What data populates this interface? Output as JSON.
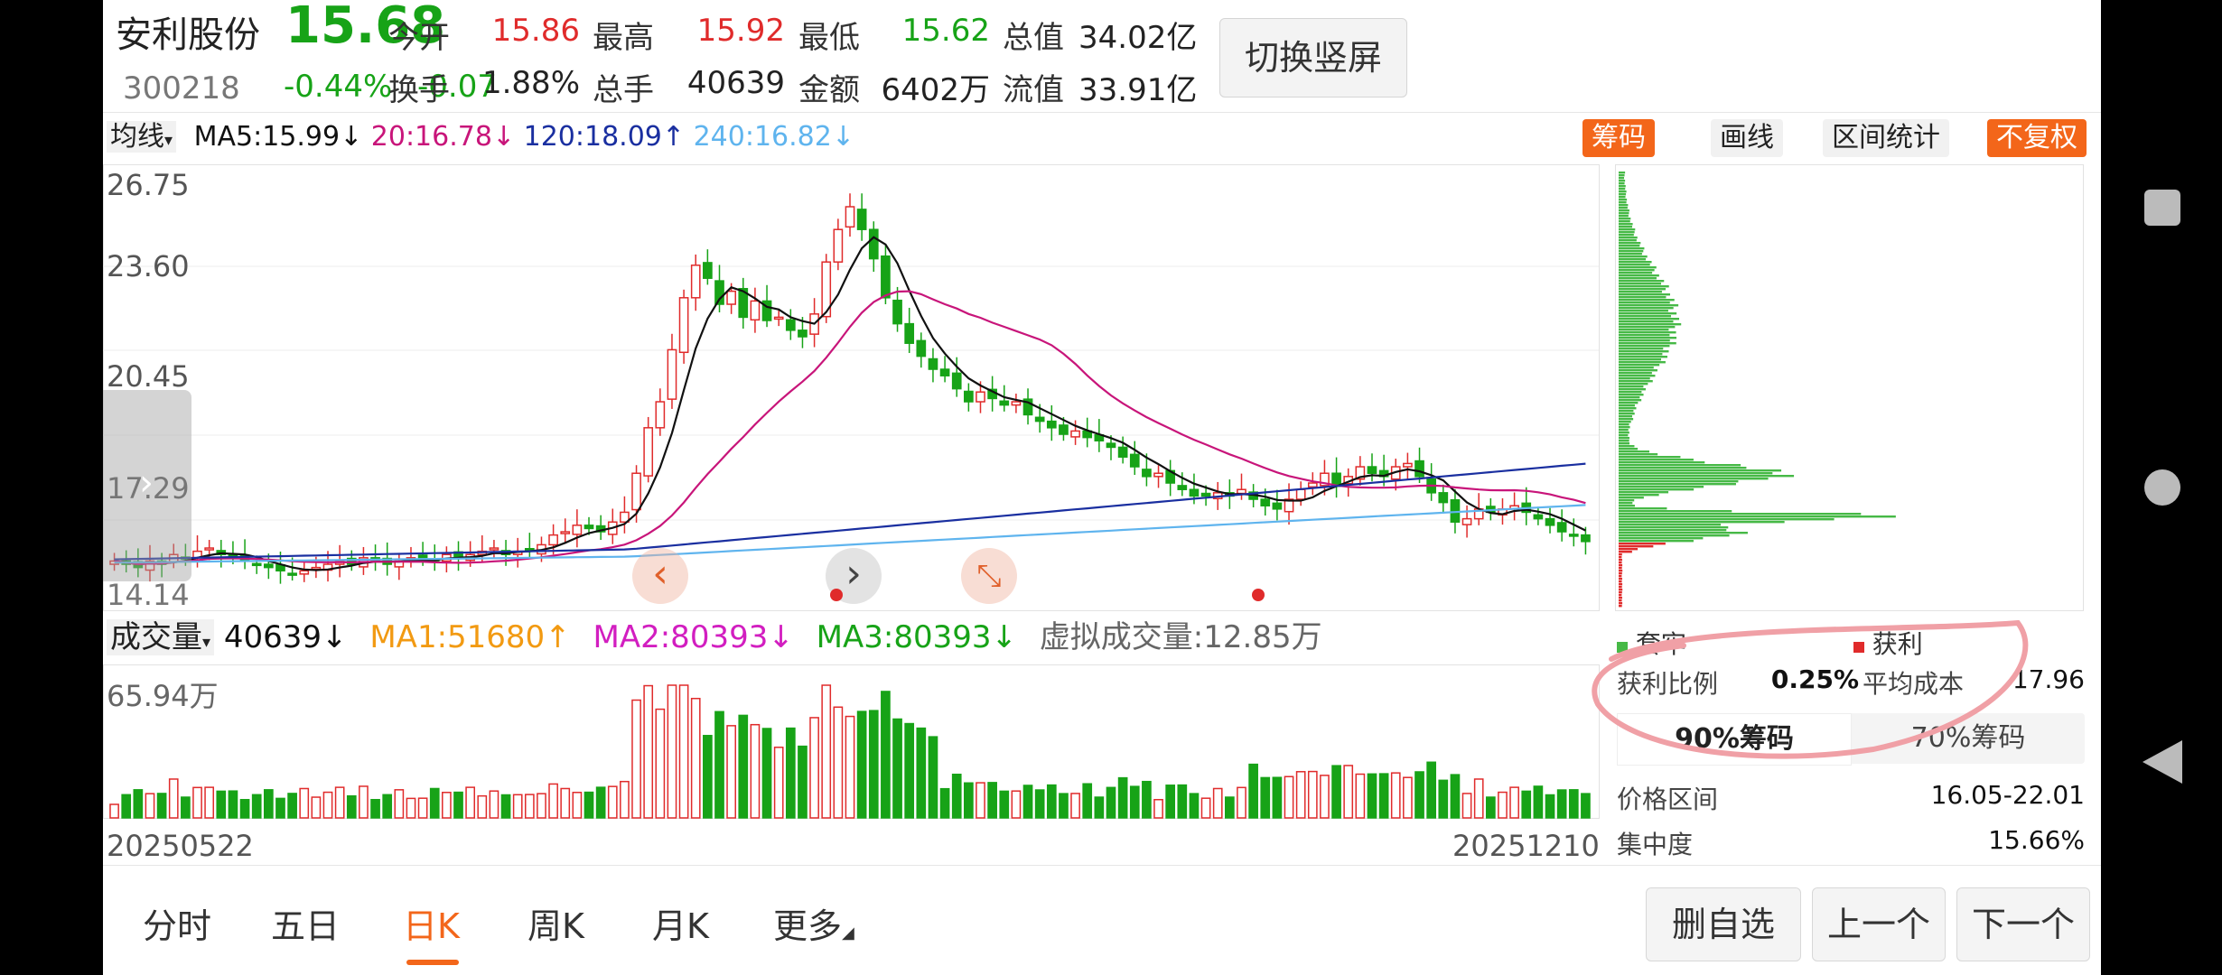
{
  "stock": {
    "name": "安利股份",
    "price": "15.68",
    "code": "300218",
    "change_pct": "-0.44%",
    "change_abs": "-0.07"
  },
  "quote": {
    "open_label": "今开",
    "open_value": "15.86",
    "high_label": "最高",
    "high_value": "15.92",
    "low_label": "最低",
    "low_value": "15.62",
    "mcap_label": "总值",
    "mcap_value": "34.02亿",
    "turnover_label": "换手",
    "turnover_value": "1.88%",
    "volume_label": "总手",
    "volume_value": "40639",
    "amount_label": "金额",
    "amount_value": "6402万",
    "float_label": "流值",
    "float_value": "33.91亿"
  },
  "switch_button": "切换竖屏",
  "ma_bar": {
    "selector": "均线",
    "ma5": "MA5:15.99",
    "ma20": "20:16.78",
    "ma120": "120:18.09",
    "ma240": "240:16.82",
    "arrow_down": "↓",
    "arrow_up": "↑"
  },
  "tools": {
    "chips": "筹码",
    "draw": "画线",
    "range_stats": "区间统计",
    "no_adjust": "不复权"
  },
  "price_axis": {
    "t1": "26.75",
    "t2": "23.60",
    "t3": "20.45",
    "t4": "17.29",
    "t5": "14.14"
  },
  "volume_bar": {
    "selector": "成交量",
    "vol": "40639",
    "ma1": "MA1:51680",
    "ma2": "MA2:80393",
    "ma3": "MA3:80393",
    "virtual": "虚拟成交量:12.85万",
    "arrow_down": "↓",
    "arrow_up": "↑"
  },
  "volume_axis": {
    "max": "65.94万"
  },
  "date_axis": {
    "start": "20250522",
    "end": "20251210"
  },
  "chip_panel": {
    "legend_trapped": "套牢",
    "legend_profit": "获利",
    "profit_ratio_label": "获利比例",
    "profit_ratio_value": "0.25%",
    "avg_cost_label": "平均成本",
    "avg_cost_value": "17.96",
    "tab_90": "90%筹码",
    "tab_70": "70%筹码",
    "price_range_label": "价格区间",
    "price_range_value": "16.05-22.01",
    "concentration_label": "集中度",
    "concentration_value": "15.66%"
  },
  "period_tabs": {
    "intraday": "分时",
    "five_day": "五日",
    "daily": "日K",
    "weekly": "周K",
    "monthly": "月K",
    "more": "更多"
  },
  "actions": {
    "remove": "删自选",
    "prev": "上一个",
    "next": "下一个"
  },
  "colors": {
    "up": "#e02b2b",
    "down": "#17a317",
    "accent": "#f3661a",
    "ma5": "#111111",
    "ma20": "#c8157a",
    "ma120": "#1a2fa0",
    "ma240": "#5fb4ee"
  },
  "chart_data": {
    "type": "candlestick",
    "x_range": [
      "20250522",
      "20251210"
    ],
    "y_range": [
      14.14,
      26.75
    ],
    "y_ticks": [
      26.75,
      23.6,
      20.45,
      17.29,
      14.14
    ],
    "close": [
      15.1,
      15.0,
      14.9,
      15.1,
      15.0,
      15.3,
      15.2,
      15.4,
      15.5,
      15.3,
      15.2,
      15.1,
      15.0,
      14.9,
      14.8,
      14.7,
      14.8,
      14.9,
      15.0,
      15.1,
      15.0,
      15.2,
      15.1,
      15.0,
      15.1,
      15.2,
      15.2,
      15.1,
      15.3,
      15.2,
      15.3,
      15.4,
      15.5,
      15.3,
      15.4,
      15.4,
      15.6,
      15.9,
      16.0,
      16.2,
      16.1,
      16.0,
      16.3,
      16.6,
      17.8,
      19.2,
      20.0,
      21.6,
      23.2,
      24.2,
      23.8,
      23.0,
      23.4,
      22.6,
      23.1,
      22.5,
      22.6,
      22.2,
      22.0,
      22.7,
      24.3,
      25.3,
      26.0,
      25.3,
      24.4,
      23.2,
      22.4,
      21.8,
      21.4,
      21.0,
      20.8,
      20.4,
      20.0,
      20.3,
      20.1,
      19.9,
      20.0,
      19.6,
      19.4,
      19.2,
      19.0,
      19.1,
      18.9,
      18.8,
      18.6,
      18.3,
      18.0,
      17.7,
      17.8,
      17.5,
      17.3,
      17.1,
      17.1,
      17.2,
      17.1,
      17.3,
      17.0,
      16.8,
      16.7,
      17.0,
      17.3,
      17.5,
      17.8,
      17.4,
      17.7,
      18.0,
      17.8,
      17.7,
      18.0,
      18.1,
      17.7,
      17.2,
      16.9,
      16.3,
      16.4,
      16.7,
      16.6,
      16.7,
      16.8,
      16.6,
      16.4,
      16.2,
      16.0,
      15.9,
      15.7
    ]
  }
}
